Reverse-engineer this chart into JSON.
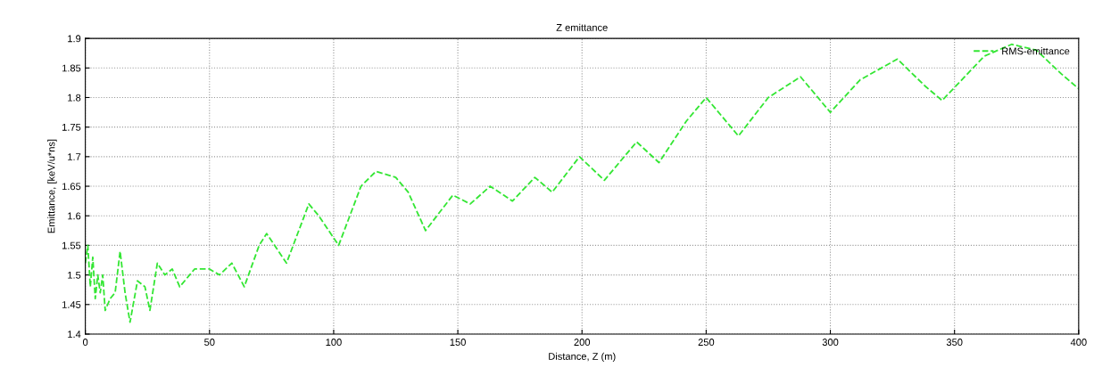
{
  "chart_data": {
    "type": "line",
    "title": "Z emittance",
    "xlabel": "Distance, Z (m)",
    "ylabel": "Emittance, [keV/u*ns]",
    "xlim": [
      0,
      400
    ],
    "xticks": [
      0,
      50,
      100,
      150,
      200,
      250,
      300,
      350,
      400
    ],
    "ylim": [
      1.4,
      1.9
    ],
    "yticks": [
      1.4,
      1.45,
      1.5,
      1.55,
      1.6,
      1.65,
      1.7,
      1.75,
      1.8,
      1.85,
      1.9
    ],
    "grid": true,
    "legend": "top right",
    "marker": "none",
    "line_style": "dashed",
    "series": [
      {
        "name": "RMS-emittance",
        "color": "#33e633",
        "x": [
          0,
          1,
          2,
          3,
          4,
          5,
          6,
          7,
          8,
          10,
          12,
          14,
          16,
          18,
          21,
          24,
          26,
          29,
          32,
          35,
          38,
          44,
          50,
          54,
          59,
          64,
          70,
          73,
          81,
          90,
          94,
          102,
          111,
          117,
          125,
          130,
          137,
          148,
          155,
          163,
          172,
          181,
          188,
          199,
          209,
          222,
          231,
          242,
          250,
          263,
          275,
          288,
          300,
          312,
          327,
          338,
          345,
          362,
          373,
          383,
          393,
          400
        ],
        "values": [
          1.52,
          1.55,
          1.48,
          1.53,
          1.46,
          1.5,
          1.47,
          1.5,
          1.44,
          1.46,
          1.47,
          1.54,
          1.47,
          1.42,
          1.49,
          1.48,
          1.44,
          1.52,
          1.5,
          1.51,
          1.48,
          1.51,
          1.51,
          1.5,
          1.52,
          1.48,
          1.55,
          1.57,
          1.52,
          1.62,
          1.6,
          1.55,
          1.65,
          1.675,
          1.665,
          1.64,
          1.575,
          1.635,
          1.62,
          1.65,
          1.625,
          1.665,
          1.64,
          1.7,
          1.66,
          1.725,
          1.69,
          1.76,
          1.8,
          1.735,
          1.8,
          1.835,
          1.775,
          1.83,
          1.865,
          1.82,
          1.795,
          1.87,
          1.89,
          1.88,
          1.84,
          1.815
        ]
      }
    ]
  }
}
